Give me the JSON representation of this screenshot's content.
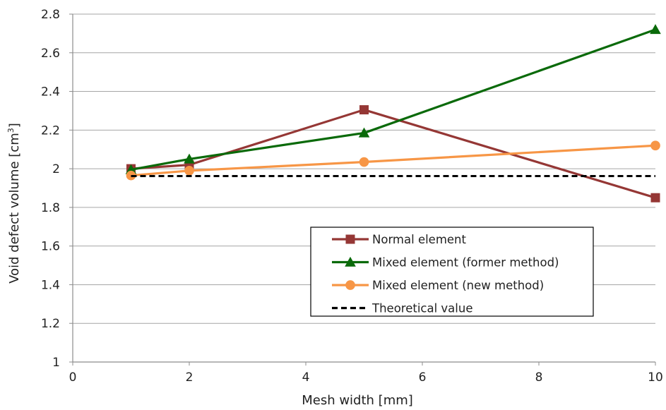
{
  "chart_data": {
    "type": "line",
    "xlabel": "Mesh width [mm]",
    "ylabel": "Void defect volume [cm",
    "ylabel_sup": "3",
    "ylabel_tail": "]",
    "xlim": [
      0,
      10
    ],
    "ylim": [
      1,
      2.8
    ],
    "x_ticks": [
      0,
      2,
      4,
      6,
      8,
      10
    ],
    "x_tick_labels": [
      "0",
      "2",
      "4",
      "6",
      "8",
      "10"
    ],
    "y_ticks": [
      1,
      1.2,
      1.4,
      1.6,
      1.8,
      2,
      2.2,
      2.4,
      2.6,
      2.8
    ],
    "y_tick_labels": [
      "1",
      "1.2",
      "1.4",
      "1.6",
      "1.8",
      "2",
      "2.2",
      "2.4",
      "2.6",
      "2.8"
    ],
    "grid": "horizontal",
    "legend_position": "lower-right",
    "series": [
      {
        "name": "Normal element",
        "color": "#953735",
        "marker": "square",
        "dashed": false,
        "points": [
          [
            1,
            2.0
          ],
          [
            2,
            2.02
          ],
          [
            5,
            2.305
          ],
          [
            10,
            1.85
          ]
        ]
      },
      {
        "name": "Mixed element (former method)",
        "color": "#0a6a0a",
        "marker": "triangle",
        "dashed": false,
        "points": [
          [
            1,
            1.995
          ],
          [
            2,
            2.05
          ],
          [
            5,
            2.185
          ],
          [
            10,
            2.72
          ]
        ]
      },
      {
        "name": "Mixed element (new method)",
        "color": "#f79646",
        "marker": "circle",
        "dashed": false,
        "points": [
          [
            1,
            1.965
          ],
          [
            2,
            1.99
          ],
          [
            5,
            2.035
          ],
          [
            10,
            2.12
          ]
        ]
      },
      {
        "name": "Theoretical value",
        "color": "#000000",
        "marker": "none",
        "dashed": true,
        "points": [
          [
            1,
            1.962
          ],
          [
            10,
            1.962
          ]
        ]
      }
    ]
  }
}
